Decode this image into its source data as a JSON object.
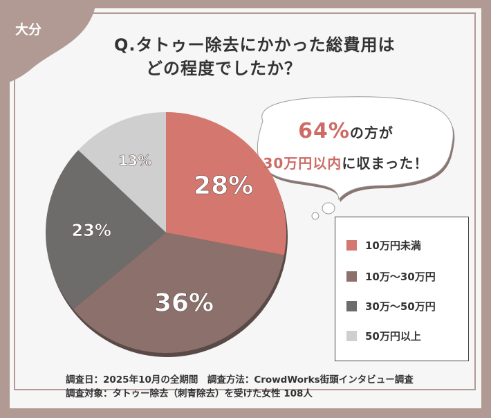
{
  "badge": "大分",
  "title": {
    "line1": "Q.タトゥー除去にかかった総費用は",
    "line2": "どの程度でしたか？"
  },
  "callout": {
    "pct": "64%",
    "text1": "の方が",
    "accent2": "30万円以内",
    "text2": "に収まった！"
  },
  "chart_data": {
    "type": "pie",
    "categories": [
      "10万円未満",
      "10万～30万円",
      "30万～50万円",
      "50万円以上"
    ],
    "values": [
      28,
      36,
      23,
      13
    ],
    "labels": [
      "28%",
      "36%",
      "23%",
      "13%"
    ],
    "colors": [
      "#d4776f",
      "#8c706b",
      "#6e6b6b",
      "#cfcfcf"
    ],
    "legend_position": "right"
  },
  "footer": {
    "line1": "調査日：2025年10月の全期間　調査方法：CrowdWorks街頭インタビュー調査",
    "line2": "調査対象：タトゥー除去（刺青除去）を受けた女性 108人"
  }
}
